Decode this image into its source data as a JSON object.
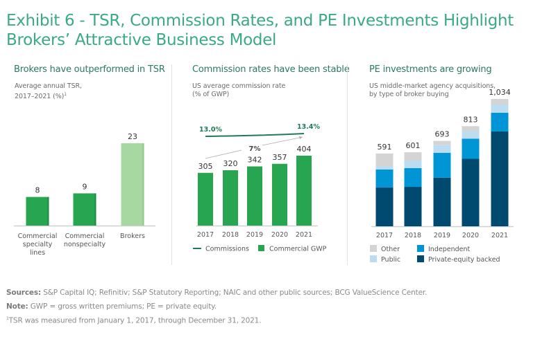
{
  "title": "Exhibit 6 - TSR, Commission Rates, and PE Investments Highlight Brokers’ Attractive Business Model",
  "title_line1": "Exhibit 6 - TSR, Commission Rates, and PE Investments Highlight",
  "title_line2": "Brokers’ Attractive Business Model",
  "colors": {
    "title": "#3aaa84",
    "panel_title": "#2b7a5b",
    "bar_green": "#27a550",
    "bar_light_green": "#a8d8a2",
    "commission_line": "#1f7a55",
    "pe_backed": "#004a70",
    "independent": "#0096d6",
    "public": "#bcdcf2",
    "other": "#d4d4d4"
  },
  "panels": [
    {
      "title": "Brokers have outperformed in TSR",
      "subtitle_line1": "Average annual TSR,",
      "subtitle_line2": "2017–2021 (%)",
      "subtitle_footnote": "1"
    },
    {
      "title": "Commission rates have been stable",
      "subtitle_line1": "US average commission rate",
      "subtitle_line2": "(% of GWP)"
    },
    {
      "title": "PE investments are growing",
      "subtitle_line1": "US middle-market agency acquisitions,",
      "subtitle_line2": "by type of broker buying"
    }
  ],
  "chart_data": [
    {
      "type": "bar",
      "title": "Brokers have outperformed in TSR",
      "ylabel": "Average annual TSR, 2017–2021 (%)",
      "categories": [
        "Commercial specialty lines",
        "Commercial nonspecialty",
        "Brokers"
      ],
      "category_lines": [
        [
          "Commercial",
          "specialty",
          "lines"
        ],
        [
          "Commercial",
          "nonspecialty"
        ],
        [
          "Brokers"
        ]
      ],
      "values": [
        8,
        9,
        23
      ],
      "value_labels": [
        "8",
        "9",
        "23"
      ],
      "highlight": [
        false,
        false,
        true
      ],
      "ylim": [
        0,
        25
      ],
      "grid": false
    },
    {
      "type": "bar",
      "title": "Commission rates have been stable",
      "ylabel": "US average commission rate (% of GWP)",
      "categories": [
        "2017",
        "2018",
        "2019",
        "2020",
        "2021"
      ],
      "series": [
        {
          "name": "Commercial GWP",
          "values": [
            305,
            320,
            342,
            357,
            404
          ],
          "kind": "bar"
        },
        {
          "name": "Commissions",
          "values": [
            13.0,
            null,
            null,
            null,
            13.4
          ],
          "kind": "line",
          "labels": [
            "13.0%",
            "13.4%"
          ]
        }
      ],
      "value_labels": [
        "305",
        "320",
        "342",
        "357",
        "404"
      ],
      "cagr_annotation": "7%",
      "legend": [
        {
          "name": "Commissions",
          "marker": "line"
        },
        {
          "name": "Commercial GWP",
          "marker": "square"
        }
      ],
      "legend_position": "bottom",
      "ylim": [
        0,
        450
      ],
      "grid": false
    },
    {
      "type": "bar",
      "stacked": true,
      "title": "PE investments are growing",
      "ylabel": "US middle-market agency acquisitions, by type of broker buying",
      "categories": [
        "2017",
        "2018",
        "2019",
        "2020",
        "2021"
      ],
      "totals": [
        591,
        601,
        693,
        813,
        1034
      ],
      "total_labels": [
        "591",
        "601",
        "693",
        "813",
        "1,034"
      ],
      "series": [
        {
          "name": "Private-equity backed",
          "values": [
            315,
            320,
            395,
            548,
            770
          ]
        },
        {
          "name": "Independent",
          "values": [
            146,
            152,
            202,
            163,
            152
          ]
        },
        {
          "name": "Public",
          "values": [
            28,
            62,
            62,
            62,
            67
          ]
        },
        {
          "name": "Other",
          "values": [
            102,
            67,
            34,
            40,
            45
          ]
        }
      ],
      "legend": [
        "Other",
        "Independent",
        "Public",
        "Private-equity backed"
      ],
      "legend_position": "bottom",
      "ylim": [
        0,
        1100
      ],
      "grid": false
    }
  ],
  "footer": {
    "sources_label": "Sources:",
    "sources_text": " S&P Capital IQ; Refinitiv; S&P Statutory Reporting; NAIC and other public sources; BCG ValueScience Center.",
    "note_label": "Note:",
    "note_text": " GWP = gross written premiums; PE = private equity.",
    "footnote_mark": "1",
    "footnote_text": "TSR was measured from January 1, 2017, through December 31, 2021."
  }
}
